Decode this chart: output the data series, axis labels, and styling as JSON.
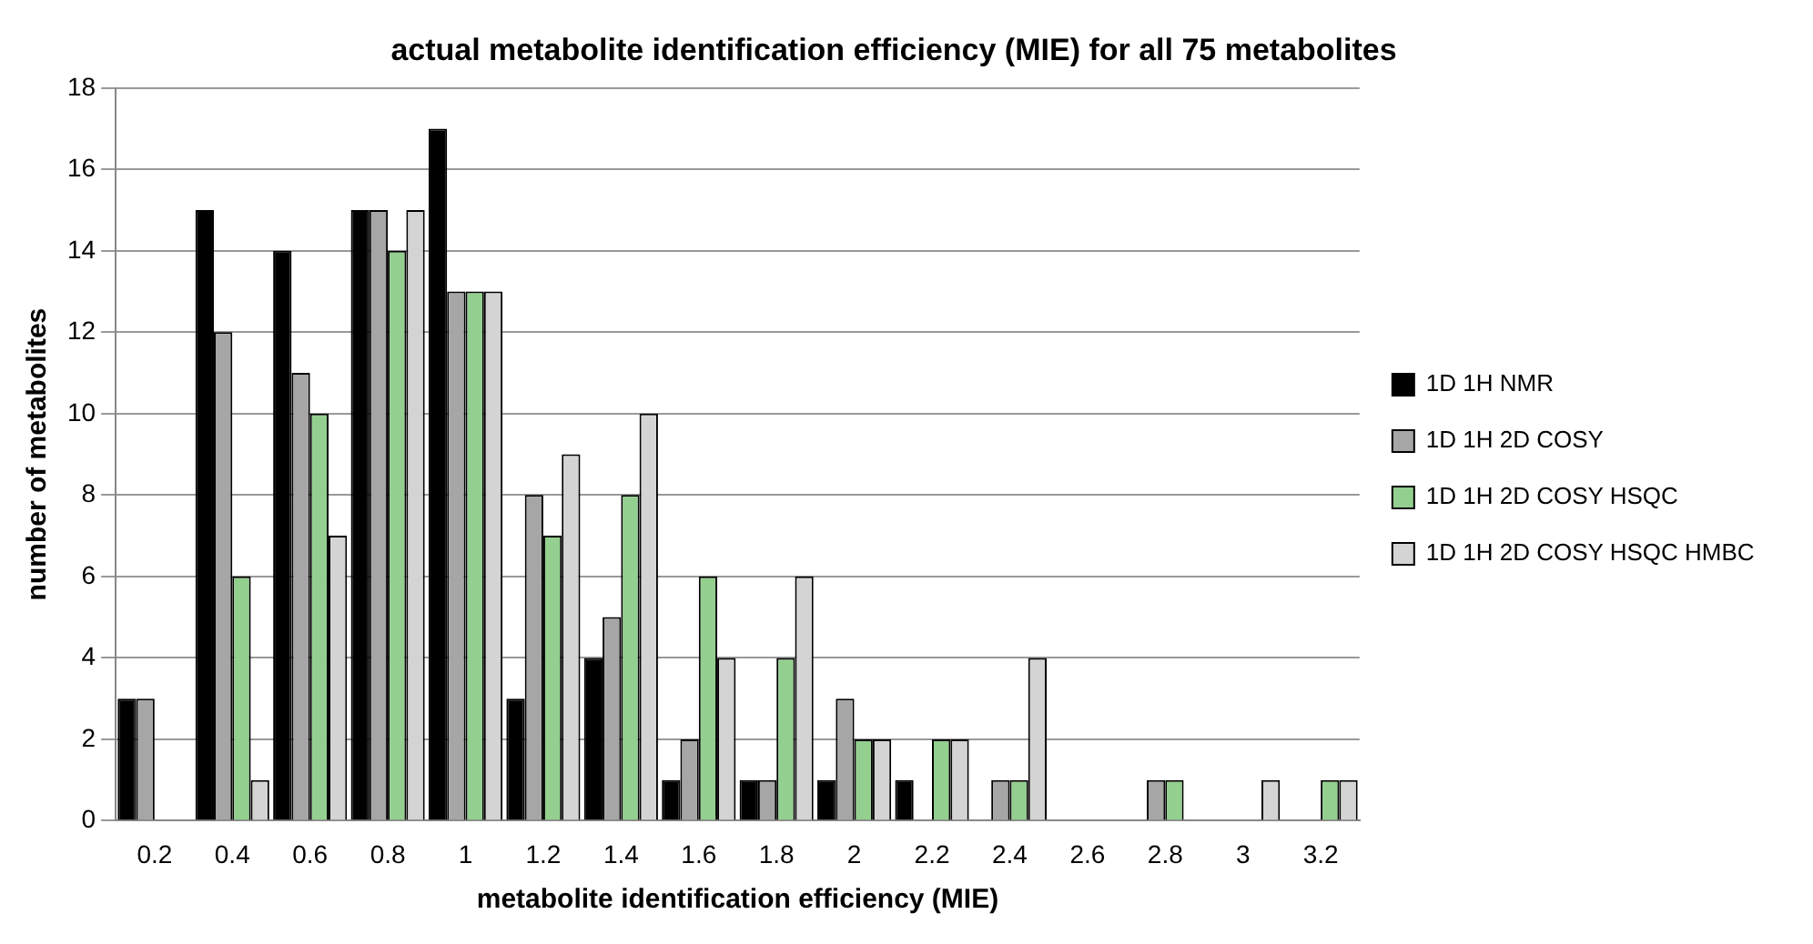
{
  "chart_data": {
    "type": "bar",
    "title": "actual metabolite identification efficiency (MIE) for all 75 metabolites",
    "xlabel": "metabolite identification efficiency (MIE)",
    "ylabel": "number of metabolites",
    "categories": [
      "0.2",
      "0.4",
      "0.6",
      "0.8",
      "1",
      "1.2",
      "1.4",
      "1.6",
      "1.8",
      "2",
      "2.2",
      "2.4",
      "2.6",
      "2.8",
      "3",
      "3.2"
    ],
    "series": [
      {
        "name": "1D 1H NMR",
        "color": "#000000",
        "values": [
          3,
          15,
          14,
          15,
          17,
          3,
          4,
          1,
          1,
          1,
          1,
          0,
          0,
          0,
          0,
          0
        ]
      },
      {
        "name": "1D 1H 2D COSY",
        "color": "#a6a6a6",
        "values": [
          3,
          12,
          11,
          15,
          13,
          8,
          5,
          2,
          1,
          3,
          0,
          1,
          0,
          1,
          0,
          0
        ]
      },
      {
        "name": "1D 1H 2D COSY HSQC",
        "color": "#93cf8f",
        "values": [
          0,
          6,
          10,
          14,
          13,
          7,
          8,
          6,
          4,
          2,
          2,
          1,
          0,
          1,
          0,
          1
        ]
      },
      {
        "name": "1D 1H 2D COSY HSQC HMBC",
        "color": "#d4d4d4",
        "values": [
          0,
          1,
          7,
          15,
          13,
          9,
          10,
          4,
          6,
          2,
          2,
          4,
          0,
          0,
          1,
          1
        ]
      }
    ],
    "ylim": [
      0,
      18
    ],
    "yticks": [
      0,
      2,
      4,
      6,
      8,
      10,
      12,
      14,
      16,
      18
    ],
    "grid": "y",
    "legend": "right"
  }
}
